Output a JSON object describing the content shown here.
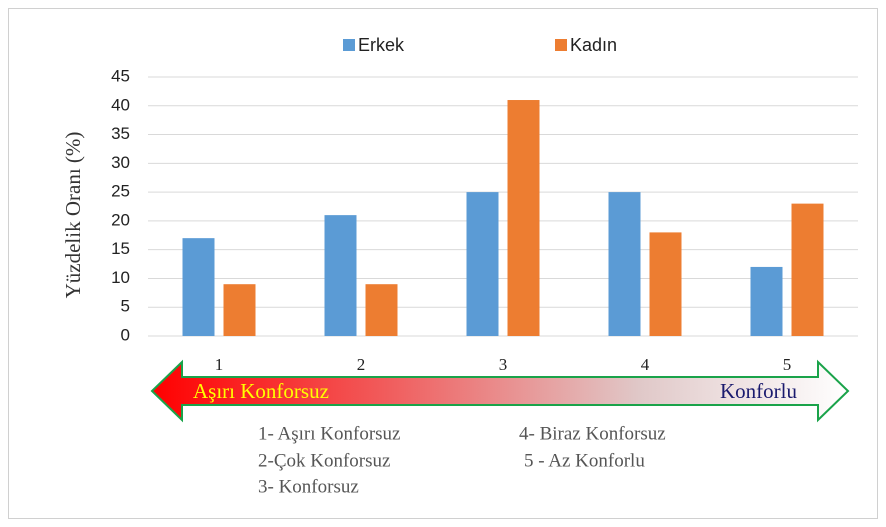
{
  "chart_data": {
    "type": "bar",
    "y_label": "Yüzdelik Oranı  (%)",
    "categories": [
      "1",
      "2",
      "3",
      "4",
      "5"
    ],
    "series": [
      {
        "name": "Erkek",
        "color": "#5b9bd5",
        "values": [
          17,
          21,
          25,
          25,
          12
        ]
      },
      {
        "name": "Kadın",
        "color": "#ed7d31",
        "values": [
          9,
          9,
          41,
          18,
          23
        ]
      }
    ],
    "ylim": [
      0,
      45
    ],
    "yticks": [
      0,
      5,
      10,
      15,
      20,
      25,
      30,
      35,
      40,
      45
    ],
    "grid": true,
    "legend": "top",
    "scale_labels": [
      "Aşırı Konforsuz",
      "Konforlu"
    ],
    "notes": [
      "1- Aşırı Konforsuz",
      "4- Biraz Konforsuz",
      "2-Çok Konforsuz",
      "5 - Az Konforlu",
      "3- Konforsuz"
    ]
  }
}
